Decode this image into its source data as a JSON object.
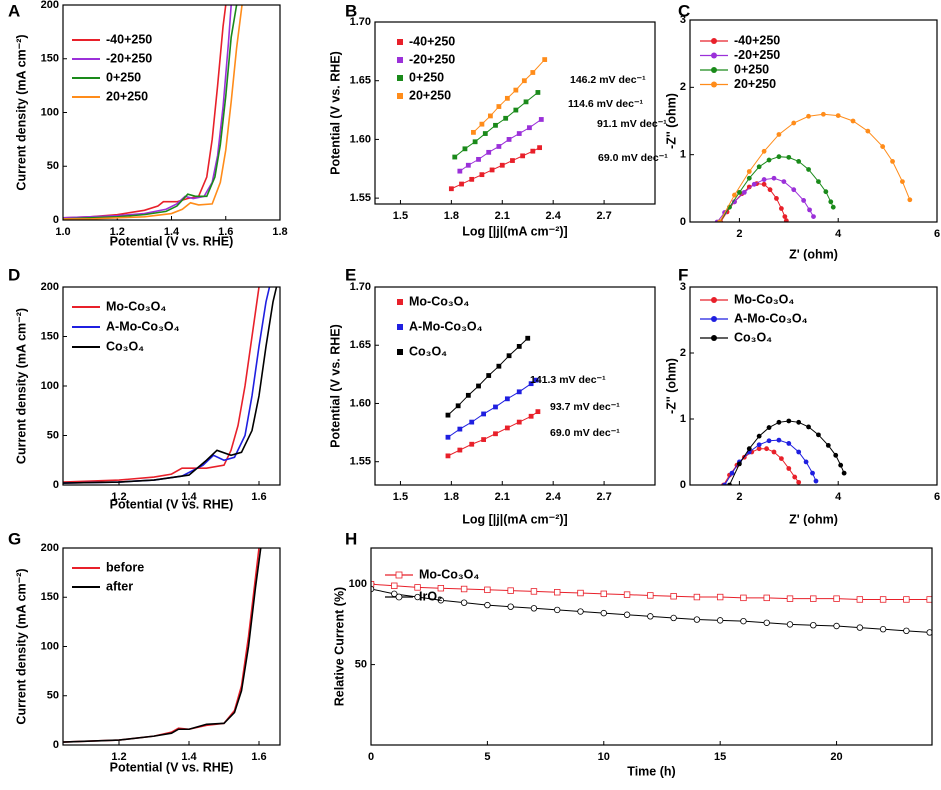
{
  "chart_data": [
    {
      "type": "line",
      "label": "A",
      "xlabel": "Potential (V vs. RHE)",
      "ylabel": "Current density (mA cm⁻²)",
      "xlim": [
        1.0,
        1.8
      ],
      "xticks": [
        {
          "value": 1.0,
          "label": "1.0"
        },
        1.2,
        1.4,
        1.6,
        1.8
      ],
      "ylim": [
        0,
        200
      ],
      "yticks": [
        0,
        50,
        100,
        150,
        200
      ],
      "series": [
        {
          "name": "-40+250",
          "color": "#e8202a",
          "x": [
            1.0,
            1.1,
            1.2,
            1.3,
            1.35,
            1.37,
            1.42,
            1.46,
            1.5,
            1.53,
            1.55,
            1.57,
            1.59,
            1.6
          ],
          "values": [
            2,
            3,
            5,
            9,
            13,
            17,
            17,
            20,
            22,
            40,
            75,
            125,
            180,
            200
          ]
        },
        {
          "name": "-20+250",
          "color": "#9b30d9",
          "x": [
            1.0,
            1.1,
            1.2,
            1.3,
            1.38,
            1.42,
            1.45,
            1.48,
            1.52,
            1.55,
            1.57,
            1.59,
            1.61,
            1.62
          ],
          "values": [
            2,
            3,
            4,
            6,
            10,
            15,
            22,
            20,
            22,
            35,
            60,
            105,
            165,
            200
          ]
        },
        {
          "name": "0+250",
          "color": "#1a8a1a",
          "x": [
            1.0,
            1.1,
            1.2,
            1.3,
            1.38,
            1.42,
            1.46,
            1.49,
            1.53,
            1.56,
            1.58,
            1.6,
            1.62,
            1.64
          ],
          "values": [
            1,
            2,
            3,
            5,
            8,
            13,
            24,
            22,
            22,
            40,
            70,
            115,
            170,
            200
          ]
        },
        {
          "name": "20+250",
          "color": "#ff8c1a",
          "x": [
            1.0,
            1.1,
            1.2,
            1.3,
            1.4,
            1.44,
            1.47,
            1.5,
            1.55,
            1.58,
            1.6,
            1.62,
            1.64,
            1.66
          ],
          "values": [
            1,
            1,
            2,
            3,
            6,
            10,
            16,
            14,
            15,
            35,
            65,
            110,
            160,
            200
          ]
        }
      ]
    },
    {
      "type": "line",
      "label": "B",
      "xlabel": "Log [|j|(mA cm⁻²)]",
      "ylabel": "Potential (V vs. RHE)",
      "xlim": [
        1.35,
        3.0
      ],
      "xticks": [
        1.5,
        1.8,
        2.1,
        2.4,
        2.7
      ],
      "ylim": [
        1.545,
        1.7
      ],
      "yticks": [
        1.55,
        {
          "value": 1.6,
          "label": "1.60"
        },
        1.65,
        {
          "value": 1.7,
          "label": "1.70"
        }
      ],
      "marker": "square",
      "series": [
        {
          "name": "-40+250",
          "color": "#e8202a",
          "annotation": "69.0 mV dec⁻¹",
          "x": [
            1.8,
            1.86,
            1.92,
            1.98,
            2.04,
            2.1,
            2.16,
            2.22,
            2.28,
            2.32
          ],
          "values": [
            1.558,
            1.562,
            1.566,
            1.57,
            1.574,
            1.578,
            1.582,
            1.586,
            1.59,
            1.593
          ]
        },
        {
          "name": "-20+250",
          "color": "#9b30d9",
          "annotation": "91.1 mV dec⁻¹",
          "x": [
            1.85,
            1.9,
            1.96,
            2.02,
            2.08,
            2.14,
            2.2,
            2.26,
            2.33
          ],
          "values": [
            1.573,
            1.578,
            1.583,
            1.589,
            1.594,
            1.6,
            1.605,
            1.61,
            1.617
          ]
        },
        {
          "name": "0+250",
          "color": "#1a8a1a",
          "annotation": "114.6 mV dec⁻¹",
          "x": [
            1.82,
            1.88,
            1.94,
            2.0,
            2.06,
            2.12,
            2.18,
            2.24,
            2.31
          ],
          "values": [
            1.585,
            1.592,
            1.598,
            1.605,
            1.612,
            1.618,
            1.625,
            1.632,
            1.64
          ]
        },
        {
          "name": "20+250",
          "color": "#ff8c1a",
          "annotation": "146.2 mV dec⁻¹",
          "x": [
            1.93,
            1.98,
            2.03,
            2.08,
            2.13,
            2.18,
            2.23,
            2.28,
            2.35
          ],
          "values": [
            1.606,
            1.613,
            1.62,
            1.628,
            1.635,
            1.642,
            1.65,
            1.657,
            1.668
          ]
        }
      ]
    },
    {
      "type": "line",
      "label": "C",
      "xlabel": "Z' (ohm)",
      "ylabel": "-Z'' (ohm)",
      "xlim": [
        1,
        6
      ],
      "xticks": [
        2,
        4,
        6
      ],
      "ylim": [
        0,
        3
      ],
      "yticks": [
        0,
        1,
        2,
        3
      ],
      "marker": "circle",
      "series": [
        {
          "name": "-40+250",
          "color": "#e8202a",
          "x": [
            1.62,
            1.75,
            1.9,
            2.05,
            2.2,
            2.35,
            2.5,
            2.62,
            2.75,
            2.85,
            2.92,
            2.95
          ],
          "values": [
            0,
            0.15,
            0.3,
            0.42,
            0.52,
            0.57,
            0.56,
            0.48,
            0.35,
            0.2,
            0.08,
            0.02
          ]
        },
        {
          "name": "-20+250",
          "color": "#9b30d9",
          "x": [
            1.55,
            1.7,
            1.9,
            2.1,
            2.3,
            2.5,
            2.7,
            2.9,
            3.1,
            3.3,
            3.42,
            3.5
          ],
          "values": [
            0,
            0.14,
            0.3,
            0.44,
            0.56,
            0.63,
            0.65,
            0.6,
            0.48,
            0.32,
            0.18,
            0.08
          ]
        },
        {
          "name": "0+250",
          "color": "#1a8a1a",
          "x": [
            1.6,
            1.8,
            2.0,
            2.2,
            2.4,
            2.6,
            2.8,
            3.0,
            3.2,
            3.4,
            3.6,
            3.75,
            3.85,
            3.9
          ],
          "values": [
            0,
            0.22,
            0.44,
            0.65,
            0.82,
            0.92,
            0.97,
            0.96,
            0.9,
            0.78,
            0.6,
            0.45,
            0.3,
            0.22
          ]
        },
        {
          "name": "20+250",
          "color": "#ff8c1a",
          "x": [
            1.6,
            1.9,
            2.2,
            2.5,
            2.8,
            3.1,
            3.4,
            3.7,
            4.0,
            4.3,
            4.6,
            4.9,
            5.1,
            5.3,
            5.45
          ],
          "values": [
            0,
            0.4,
            0.75,
            1.05,
            1.3,
            1.47,
            1.57,
            1.6,
            1.58,
            1.5,
            1.35,
            1.12,
            0.9,
            0.6,
            0.33
          ]
        }
      ]
    },
    {
      "type": "line",
      "label": "D",
      "xlabel": "Potential (V vs. RHE)",
      "ylabel": "Current density (mA cm⁻²)",
      "xlim": [
        1.04,
        1.66
      ],
      "xticks": [
        1.2,
        1.4,
        1.6
      ],
      "ylim": [
        0,
        200
      ],
      "yticks": [
        0,
        50,
        100,
        150,
        200
      ],
      "series": [
        {
          "name": "Mo-Co₃O₄",
          "color": "#e8202a",
          "x": [
            1.04,
            1.2,
            1.3,
            1.35,
            1.38,
            1.45,
            1.5,
            1.52,
            1.54,
            1.56,
            1.58,
            1.6
          ],
          "values": [
            3,
            5,
            8,
            11,
            17,
            17,
            20,
            35,
            60,
            100,
            150,
            200
          ]
        },
        {
          "name": "A-Mo-Co₃O₄",
          "color": "#1f1fe0",
          "x": [
            1.04,
            1.2,
            1.3,
            1.38,
            1.44,
            1.47,
            1.5,
            1.53,
            1.56,
            1.58,
            1.6,
            1.62,
            1.63
          ],
          "values": [
            2,
            3,
            5,
            9,
            20,
            30,
            25,
            28,
            50,
            90,
            140,
            185,
            200
          ]
        },
        {
          "name": "Co₃O₄",
          "color": "#000000",
          "x": [
            1.04,
            1.2,
            1.3,
            1.4,
            1.45,
            1.48,
            1.52,
            1.55,
            1.58,
            1.6,
            1.62,
            1.64,
            1.65
          ],
          "values": [
            2,
            3,
            5,
            10,
            25,
            35,
            30,
            33,
            55,
            90,
            140,
            185,
            200
          ]
        }
      ]
    },
    {
      "type": "line",
      "label": "E",
      "xlabel": "Log [|j|(mA cm⁻²)]",
      "ylabel": "Potential (V vs. RHE)",
      "xlim": [
        1.35,
        3.0
      ],
      "xticks": [
        1.5,
        1.8,
        2.1,
        2.4,
        2.7
      ],
      "ylim": [
        1.53,
        1.7
      ],
      "yticks": [
        1.55,
        {
          "value": 1.6,
          "label": "1.60"
        },
        1.65,
        {
          "value": 1.7,
          "label": "1.70"
        }
      ],
      "marker": "square",
      "series": [
        {
          "name": "Mo-Co₃O₄",
          "color": "#e8202a",
          "annotation": "69.0 mV dec⁻¹",
          "x": [
            1.78,
            1.85,
            1.92,
            1.99,
            2.06,
            2.13,
            2.2,
            2.27,
            2.31
          ],
          "values": [
            1.555,
            1.56,
            1.565,
            1.569,
            1.574,
            1.579,
            1.584,
            1.589,
            1.593
          ]
        },
        {
          "name": "A-Mo-Co₃O₄",
          "color": "#1f1fe0",
          "annotation": "93.7 mV dec⁻¹",
          "x": [
            1.78,
            1.85,
            1.92,
            1.99,
            2.06,
            2.13,
            2.2,
            2.27,
            2.3
          ],
          "values": [
            1.571,
            1.578,
            1.584,
            1.591,
            1.597,
            1.604,
            1.61,
            1.617,
            1.62
          ]
        },
        {
          "name": "Co₃O₄",
          "color": "#000000",
          "annotation": "141.3 mV dec⁻¹",
          "x": [
            1.78,
            1.84,
            1.9,
            1.96,
            2.02,
            2.08,
            2.14,
            2.2,
            2.25
          ],
          "values": [
            1.59,
            1.598,
            1.607,
            1.615,
            1.624,
            1.632,
            1.641,
            1.649,
            1.656
          ]
        }
      ]
    },
    {
      "type": "line",
      "label": "F",
      "xlabel": "Z' (ohm)",
      "ylabel": "-Z'' (ohm)",
      "xlim": [
        1,
        6
      ],
      "xticks": [
        2,
        4,
        6
      ],
      "ylim": [
        0,
        3
      ],
      "yticks": [
        0,
        1,
        2,
        3
      ],
      "marker": "circle",
      "series": [
        {
          "name": "Mo-Co₃O₄",
          "color": "#e8202a",
          "x": [
            1.68,
            1.8,
            1.95,
            2.1,
            2.25,
            2.4,
            2.55,
            2.7,
            2.85,
            3.0,
            3.12,
            3.2
          ],
          "values": [
            0,
            0.15,
            0.3,
            0.42,
            0.5,
            0.55,
            0.55,
            0.5,
            0.4,
            0.25,
            0.12,
            0.04
          ]
        },
        {
          "name": "A-Mo-Co₃O₄",
          "color": "#1f1fe0",
          "x": [
            1.7,
            1.85,
            2.0,
            2.2,
            2.4,
            2.6,
            2.8,
            3.0,
            3.2,
            3.35,
            3.48,
            3.55
          ],
          "values": [
            0,
            0.18,
            0.35,
            0.5,
            0.61,
            0.67,
            0.68,
            0.63,
            0.5,
            0.35,
            0.18,
            0.06
          ]
        },
        {
          "name": "Co₃O₄",
          "color": "#000000",
          "x": [
            1.8,
            2.0,
            2.2,
            2.4,
            2.6,
            2.8,
            3.0,
            3.2,
            3.4,
            3.6,
            3.8,
            3.95,
            4.05,
            4.12
          ],
          "values": [
            0,
            0.32,
            0.55,
            0.74,
            0.87,
            0.95,
            0.97,
            0.95,
            0.88,
            0.76,
            0.6,
            0.45,
            0.3,
            0.18
          ]
        }
      ]
    },
    {
      "type": "line",
      "label": "G",
      "xlabel": "Potential (V vs. RHE)",
      "ylabel": "Current density (mA cm⁻²)",
      "xlim": [
        1.04,
        1.66
      ],
      "xticks": [
        1.2,
        1.4,
        1.6
      ],
      "ylim": [
        0,
        200
      ],
      "yticks": [
        0,
        50,
        100,
        150,
        200
      ],
      "series": [
        {
          "name": "before",
          "color": "#e8202a",
          "x": [
            1.04,
            1.2,
            1.3,
            1.35,
            1.37,
            1.4,
            1.45,
            1.5,
            1.53,
            1.55,
            1.57,
            1.59,
            1.6
          ],
          "values": [
            3,
            5,
            9,
            13,
            17,
            16,
            20,
            22,
            35,
            60,
            110,
            170,
            200
          ]
        },
        {
          "name": "after",
          "color": "#000000",
          "x": [
            1.04,
            1.2,
            1.3,
            1.35,
            1.37,
            1.4,
            1.45,
            1.5,
            1.53,
            1.55,
            1.57,
            1.59,
            1.605
          ],
          "values": [
            3,
            5,
            9,
            12,
            16,
            16,
            21,
            22,
            33,
            55,
            100,
            160,
            200
          ]
        }
      ]
    },
    {
      "type": "line",
      "label": "H",
      "xlabel": "Time (h)",
      "ylabel": "Relative Current (%)",
      "xlim": [
        0,
        24.1
      ],
      "xticks": [
        0,
        5,
        10,
        15,
        20
      ],
      "ylim": [
        0,
        122.5
      ],
      "yticks": [
        50,
        100
      ],
      "series": [
        {
          "name": "Mo-Co₃O₄",
          "color": "#e8202a",
          "marker": "open-square",
          "x": [
            0,
            1,
            2,
            3,
            4,
            5,
            6,
            7,
            8,
            9,
            10,
            11,
            12,
            13,
            14,
            15,
            16,
            17,
            18,
            19,
            20,
            21,
            22,
            23,
            24
          ],
          "values": [
            100,
            99,
            98,
            97.5,
            97,
            96.5,
            96,
            95.5,
            95,
            94.5,
            94,
            93.5,
            93,
            92.5,
            92,
            92,
            91.5,
            91.5,
            91,
            91,
            91,
            90.5,
            90.5,
            90.5,
            90.5
          ]
        },
        {
          "name": "IrO₂",
          "color": "#000000",
          "marker": "open-circle",
          "x": [
            0,
            1,
            2,
            3,
            4,
            5,
            6,
            7,
            8,
            9,
            10,
            11,
            12,
            13,
            14,
            15,
            16,
            17,
            18,
            19,
            20,
            21,
            22,
            23,
            24
          ],
          "values": [
            97,
            94,
            92,
            90,
            88.5,
            87,
            86,
            85,
            84,
            83,
            82,
            81,
            80,
            79,
            78,
            77.5,
            77,
            76,
            75,
            74.5,
            74,
            73,
            72,
            71,
            70
          ]
        }
      ]
    }
  ]
}
